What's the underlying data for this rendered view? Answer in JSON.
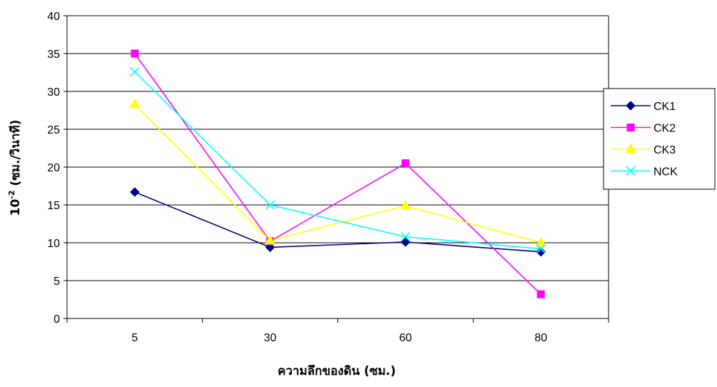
{
  "chart_data": {
    "type": "line",
    "categories": [
      "5",
      "30",
      "60",
      "80"
    ],
    "ylabel_base": "10",
    "ylabel_exp": "-2",
    "ylabel_rest": " (ซม./วินาที)",
    "xlabel": "ความลึกของดิน (ซม.)",
    "ylim": [
      0,
      40
    ],
    "yticks": [
      "0",
      "5",
      "10",
      "15",
      "20",
      "25",
      "30",
      "35",
      "40"
    ],
    "grid": "horizontal",
    "legend_position": "right",
    "series": [
      {
        "name": "CK1",
        "color": "#000080",
        "marker": "diamond",
        "values": [
          16.7,
          9.4,
          10.1,
          8.8
        ]
      },
      {
        "name": "CK2",
        "color": "#ff00ff",
        "marker": "square",
        "values": [
          35.0,
          10.2,
          20.5,
          3.2
        ]
      },
      {
        "name": "CK3",
        "color": "#ffff00",
        "marker": "triangle",
        "values": [
          28.3,
          10.3,
          14.9,
          10.0
        ]
      },
      {
        "name": "NCK",
        "color": "#00ffff",
        "marker": "x",
        "values": [
          32.6,
          15.0,
          10.8,
          9.2
        ]
      }
    ]
  }
}
